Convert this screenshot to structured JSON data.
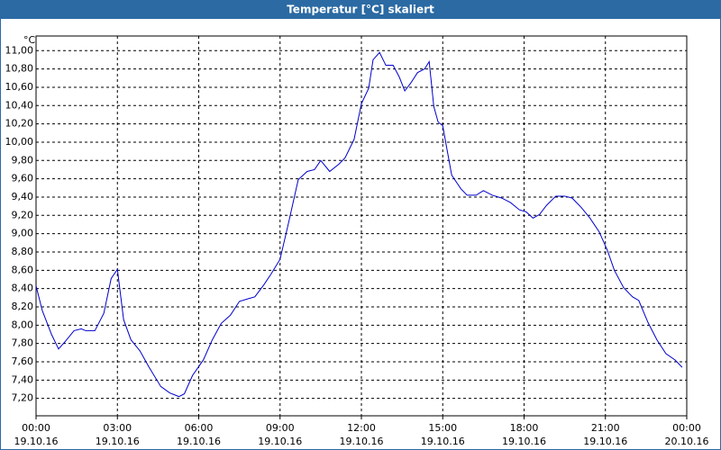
{
  "chart_data": {
    "type": "line",
    "title": "Temperatur [°C] skaliert",
    "y_unit": "°C",
    "x": [
      0,
      0.23,
      0.57,
      0.83,
      1.07,
      1.4,
      1.67,
      1.83,
      2.17,
      2.5,
      2.77,
      3,
      3.23,
      3.5,
      3.83,
      4.17,
      4.6,
      4.93,
      5.27,
      5.47,
      5.77,
      6.17,
      6.5,
      6.83,
      7.17,
      7.5,
      7.83,
      8.07,
      8.4,
      8.67,
      9,
      9.33,
      9.67,
      10,
      10.27,
      10.5,
      10.83,
      11.17,
      11.4,
      11.73,
      12,
      12.27,
      12.43,
      12.67,
      12.9,
      13.17,
      13.4,
      13.6,
      13.83,
      14.07,
      14.33,
      14.5,
      14.67,
      14.83,
      15,
      15.17,
      15.33,
      15.67,
      15.9,
      16.23,
      16.5,
      16.83,
      17.17,
      17.5,
      17.83,
      18.07,
      18.33,
      18.57,
      18.83,
      19.17,
      19.5,
      19.77,
      20.1,
      20.43,
      20.77,
      21.07,
      21.33,
      21.67,
      22,
      22.23,
      22.57,
      22.9,
      23.23,
      23.57,
      23.83
    ],
    "series": [
      {
        "name": "Temperatur",
        "color": "#0000cc",
        "values": [
          8.43,
          8.16,
          7.9,
          7.74,
          7.82,
          7.94,
          7.96,
          7.94,
          7.94,
          8.13,
          8.51,
          8.61,
          8.06,
          7.84,
          7.72,
          7.54,
          7.33,
          7.26,
          7.22,
          7.25,
          7.45,
          7.62,
          7.84,
          8.02,
          8.11,
          8.26,
          8.29,
          8.31,
          8.44,
          8.56,
          8.72,
          9.14,
          9.59,
          9.68,
          9.7,
          9.8,
          9.68,
          9.76,
          9.83,
          10.03,
          10.42,
          10.59,
          10.9,
          10.98,
          10.84,
          10.84,
          10.71,
          10.56,
          10.65,
          10.76,
          10.8,
          10.88,
          10.39,
          10.22,
          10.18,
          9.9,
          9.64,
          9.49,
          9.42,
          9.42,
          9.47,
          9.42,
          9.39,
          9.34,
          9.26,
          9.24,
          9.17,
          9.21,
          9.31,
          9.41,
          9.41,
          9.39,
          9.29,
          9.17,
          9.02,
          8.82,
          8.6,
          8.41,
          8.31,
          8.27,
          8.03,
          7.84,
          7.69,
          7.62,
          7.54
        ]
      }
    ],
    "xlim": [
      0,
      24
    ],
    "ylim": [
      7.01,
      11.16
    ],
    "grid": true,
    "xticks": [
      {
        "value": 0,
        "label": "00:00",
        "date": "19.10.16"
      },
      {
        "value": 3,
        "label": "03:00",
        "date": "19.10.16"
      },
      {
        "value": 6,
        "label": "06:00",
        "date": "19.10.16"
      },
      {
        "value": 9,
        "label": "09:00",
        "date": "19.10.16"
      },
      {
        "value": 12,
        "label": "12:00",
        "date": "19.10.16"
      },
      {
        "value": 15,
        "label": "15:00",
        "date": "19.10.16"
      },
      {
        "value": 18,
        "label": "18:00",
        "date": "19.10.16"
      },
      {
        "value": 21,
        "label": "21:00",
        "date": "19.10.16"
      },
      {
        "value": 24,
        "label": "00:00",
        "date": "20.10.16"
      }
    ],
    "yticks": [
      {
        "value": 7.2,
        "label": "7,20"
      },
      {
        "value": 7.4,
        "label": "7,40"
      },
      {
        "value": 7.6,
        "label": "7,60"
      },
      {
        "value": 7.8,
        "label": "7,80"
      },
      {
        "value": 8,
        "label": "8,00"
      },
      {
        "value": 8.2,
        "label": "8,20"
      },
      {
        "value": 8.4,
        "label": "8,40"
      },
      {
        "value": 8.6,
        "label": "8,60"
      },
      {
        "value": 8.8,
        "label": "8,80"
      },
      {
        "value": 9,
        "label": "9,00"
      },
      {
        "value": 9.2,
        "label": "9,20"
      },
      {
        "value": 9.4,
        "label": "9,40"
      },
      {
        "value": 9.6,
        "label": "9,60"
      },
      {
        "value": 9.8,
        "label": "9,80"
      },
      {
        "value": 10,
        "label": "10,00"
      },
      {
        "value": 10.2,
        "label": "10,20"
      },
      {
        "value": 10.4,
        "label": "10,40"
      },
      {
        "value": 10.6,
        "label": "10,60"
      },
      {
        "value": 10.8,
        "label": "10,80"
      },
      {
        "value": 11,
        "label": "11,00"
      }
    ]
  }
}
